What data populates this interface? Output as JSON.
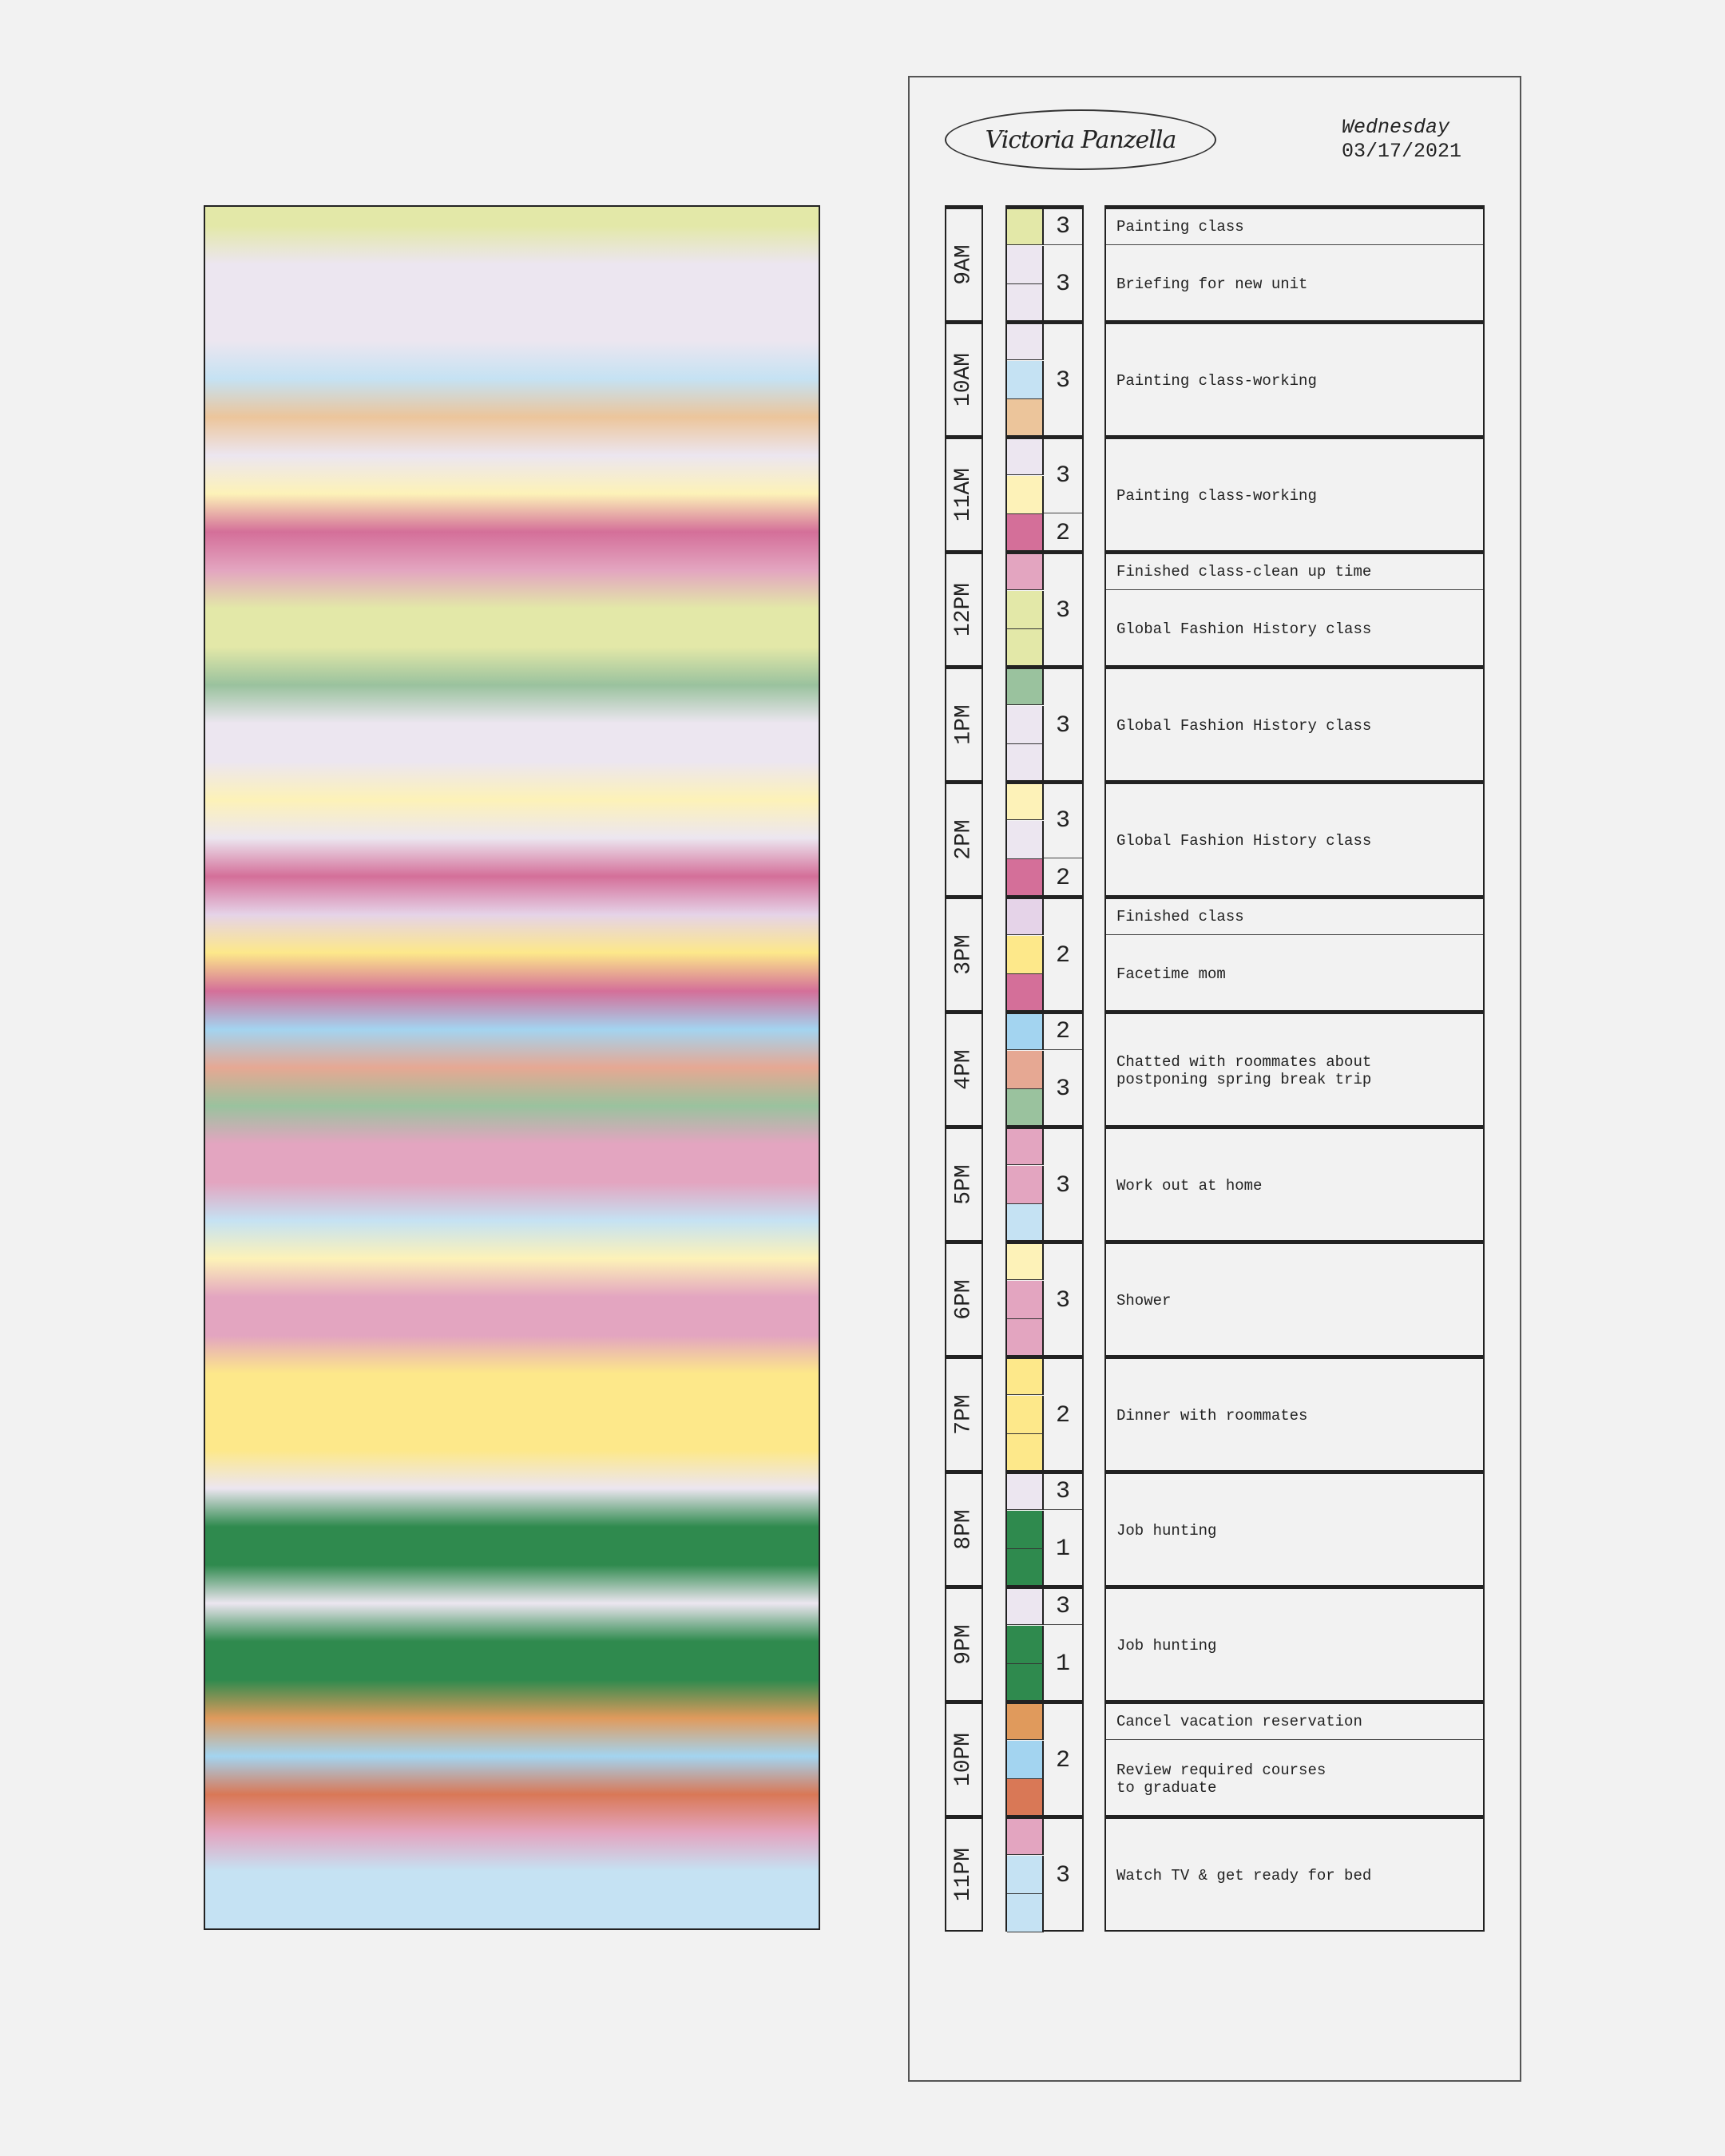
{
  "header": {
    "name": "Victoria Panzella",
    "day": "Wednesday",
    "date": "03/17/2021"
  },
  "hours": [
    {
      "time": "9AM",
      "colors": [
        "#e3e8a8",
        "#ece6f0",
        "#ece6f0"
      ],
      "ratings": [
        {
          "value": "3",
          "slots": 1
        },
        {
          "value": "3",
          "slots": 2
        }
      ],
      "activities": [
        {
          "text": "Painting class",
          "slots": 1
        },
        {
          "text": "Briefing for new unit",
          "slots": 2
        }
      ]
    },
    {
      "time": "10AM",
      "colors": [
        "#ece6f0",
        "#c5e2f3",
        "#ecc59b"
      ],
      "ratings": [
        {
          "value": "3",
          "slots": 3
        }
      ],
      "activities": [
        {
          "text": "Painting class-working",
          "slots": 3
        }
      ]
    },
    {
      "time": "11AM",
      "colors": [
        "#ece6f0",
        "#fdf2b8",
        "#d46f99"
      ],
      "ratings": [
        {
          "value": "3",
          "slots": 2
        },
        {
          "value": "2",
          "slots": 1
        }
      ],
      "activities": [
        {
          "text": "Painting class-working",
          "slots": 3
        }
      ]
    },
    {
      "time": "12PM",
      "colors": [
        "#e3a5c0",
        "#e3e8a8",
        "#e3e8a8"
      ],
      "ratings": [
        {
          "value": "3",
          "slots": 3
        }
      ],
      "activities": [
        {
          "text": "Finished class-clean up time",
          "slots": 1
        },
        {
          "text": "Global Fashion History class",
          "slots": 2
        }
      ]
    },
    {
      "time": "1PM",
      "colors": [
        "#9ac29e",
        "#ece6f0",
        "#ece6f0"
      ],
      "ratings": [
        {
          "value": "3",
          "slots": 3
        }
      ],
      "activities": [
        {
          "text": "Global Fashion History class",
          "slots": 3
        }
      ]
    },
    {
      "time": "2PM",
      "colors": [
        "#fdf2b8",
        "#ece6f0",
        "#d46f99"
      ],
      "ratings": [
        {
          "value": "3",
          "slots": 2
        },
        {
          "value": "2",
          "slots": 1
        }
      ],
      "activities": [
        {
          "text": "Global Fashion History class",
          "slots": 3
        }
      ]
    },
    {
      "time": "3PM",
      "colors": [
        "#e5d3e8",
        "#fde88a",
        "#d46f99"
      ],
      "ratings": [
        {
          "value": "2",
          "slots": 3
        }
      ],
      "activities": [
        {
          "text": "Finished class",
          "slots": 1
        },
        {
          "text": "Facetime mom",
          "slots": 2
        }
      ]
    },
    {
      "time": "4PM",
      "colors": [
        "#a3d4f0",
        "#e6a893",
        "#9ac29e"
      ],
      "ratings": [
        {
          "value": "2",
          "slots": 1
        },
        {
          "value": "3",
          "slots": 2
        }
      ],
      "activities": [
        {
          "text": "Chatted with roommates about\npostponing spring break trip",
          "slots": 3
        }
      ]
    },
    {
      "time": "5PM",
      "colors": [
        "#e3a5c0",
        "#e3a5c0",
        "#c5e2f3"
      ],
      "ratings": [
        {
          "value": "3",
          "slots": 3
        }
      ],
      "activities": [
        {
          "text": "Work out at home",
          "slots": 3
        }
      ]
    },
    {
      "time": "6PM",
      "colors": [
        "#fdf2b8",
        "#e3a5c0",
        "#e3a5c0"
      ],
      "ratings": [
        {
          "value": "3",
          "slots": 3
        }
      ],
      "activities": [
        {
          "text": "Shower",
          "slots": 3
        }
      ]
    },
    {
      "time": "7PM",
      "colors": [
        "#fde88a",
        "#fde88a",
        "#fde88a"
      ],
      "ratings": [
        {
          "value": "2",
          "slots": 3
        }
      ],
      "activities": [
        {
          "text": "Dinner with roommates",
          "slots": 3
        }
      ]
    },
    {
      "time": "8PM",
      "colors": [
        "#ece6f0",
        "#2f8a4e",
        "#2f8a4e"
      ],
      "ratings": [
        {
          "value": "3",
          "slots": 1
        },
        {
          "value": "1",
          "slots": 2
        }
      ],
      "activities": [
        {
          "text": "Job hunting",
          "slots": 3
        }
      ]
    },
    {
      "time": "9PM",
      "colors": [
        "#ece6f0",
        "#2f8a4e",
        "#2f8a4e"
      ],
      "ratings": [
        {
          "value": "3",
          "slots": 1
        },
        {
          "value": "1",
          "slots": 2
        }
      ],
      "activities": [
        {
          "text": "Job hunting",
          "slots": 3
        }
      ]
    },
    {
      "time": "10PM",
      "colors": [
        "#e09a5c",
        "#a3d4f0",
        "#d97856"
      ],
      "ratings": [
        {
          "value": "2",
          "slots": 3
        }
      ],
      "activities": [
        {
          "text": "Cancel vacation reservation",
          "slots": 1
        },
        {
          "text": "Review required courses\nto graduate",
          "slots": 2
        }
      ]
    },
    {
      "time": "11PM",
      "colors": [
        "#e3a5c0",
        "#c5e2f3",
        "#c5e2f3"
      ],
      "ratings": [
        {
          "value": "3",
          "slots": 3
        }
      ],
      "activities": [
        {
          "text": "Watch TV & get ready for bed",
          "slots": 3
        }
      ]
    }
  ]
}
